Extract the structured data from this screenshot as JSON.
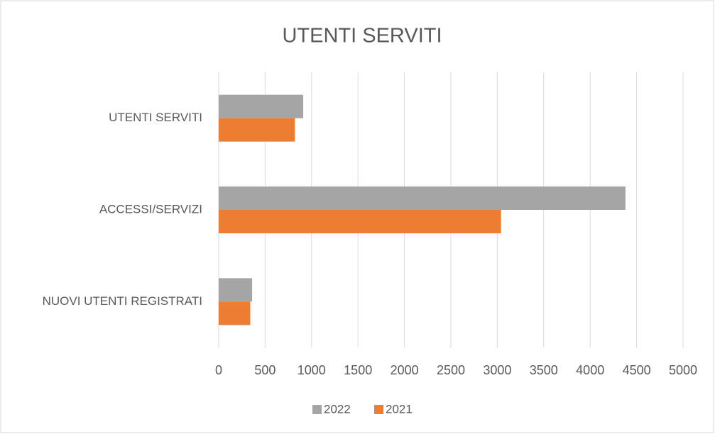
{
  "chart_data": {
    "type": "bar",
    "orientation": "horizontal",
    "title": "UTENTI SERVITI",
    "categories": [
      "UTENTI SERVITI",
      "ACCESSI/SERVIZI",
      "NUOVI UTENTI REGISTRATI"
    ],
    "series": [
      {
        "name": "2022",
        "color": "#a5a5a5",
        "values": [
          910,
          4380,
          360
        ]
      },
      {
        "name": "2021",
        "color": "#ed7d31",
        "values": [
          820,
          3040,
          340
        ]
      }
    ],
    "xlim": [
      0,
      5000
    ],
    "xticks": [
      0,
      500,
      1000,
      1500,
      2000,
      2500,
      3000,
      3500,
      4000,
      4500,
      5000
    ],
    "grid": true,
    "legend": "bottom"
  }
}
